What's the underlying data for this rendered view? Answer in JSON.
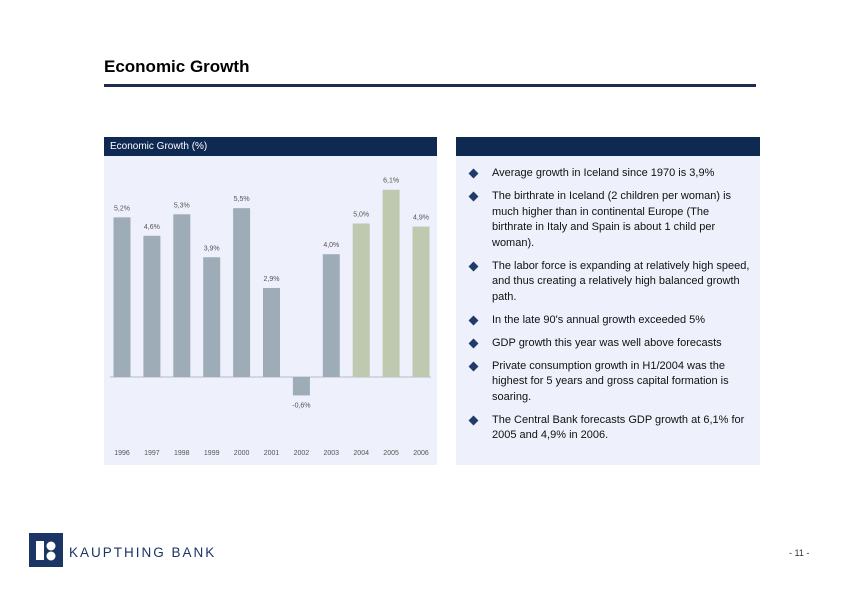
{
  "title": "Economic Growth",
  "chart_panel": {
    "header": "Economic Growth (%)"
  },
  "bullets": [
    "Average growth in Iceland since 1970 is 3,9%",
    "The birthrate in Iceland (2 children per woman) is much higher than in continental Europe (The birthrate in Italy and Spain is about 1 child per woman).",
    "The labor force is expanding at relatively high speed, and thus creating a relatively high balanced growth path.",
    "In the late 90's annual growth exceeded 5%",
    "GDP growth this year was well above forecasts",
    "Private consumption growth in H1/2004 was the highest for 5 years and gross capital formation is soaring.",
    "The Central Bank forecasts GDP growth at 6,1% for 2005 and 4,9% in 2006."
  ],
  "logo": {
    "text": "KAUPTHING BANK"
  },
  "page_number": "- 11 -",
  "chart_data": {
    "type": "bar",
    "title": "Economic Growth (%)",
    "categories": [
      "1996",
      "1997",
      "1998",
      "1999",
      "2000",
      "2001",
      "2002",
      "2003",
      "2004",
      "2005",
      "2006"
    ],
    "values": [
      5.2,
      4.6,
      5.3,
      3.9,
      5.5,
      2.9,
      -0.6,
      4.0,
      5.0,
      6.1,
      4.9
    ],
    "labels": [
      "5,2%",
      "4,6%",
      "5,3%",
      "3,9%",
      "5,5%",
      "2,9%",
      "-0,6%",
      "4,0%",
      "5,0%",
      "6,1%",
      "4,9%"
    ],
    "forecast_from": "2004",
    "colors": {
      "actual": "#9eacb8",
      "forecast": "#bfc9b0"
    },
    "grid": false
  }
}
